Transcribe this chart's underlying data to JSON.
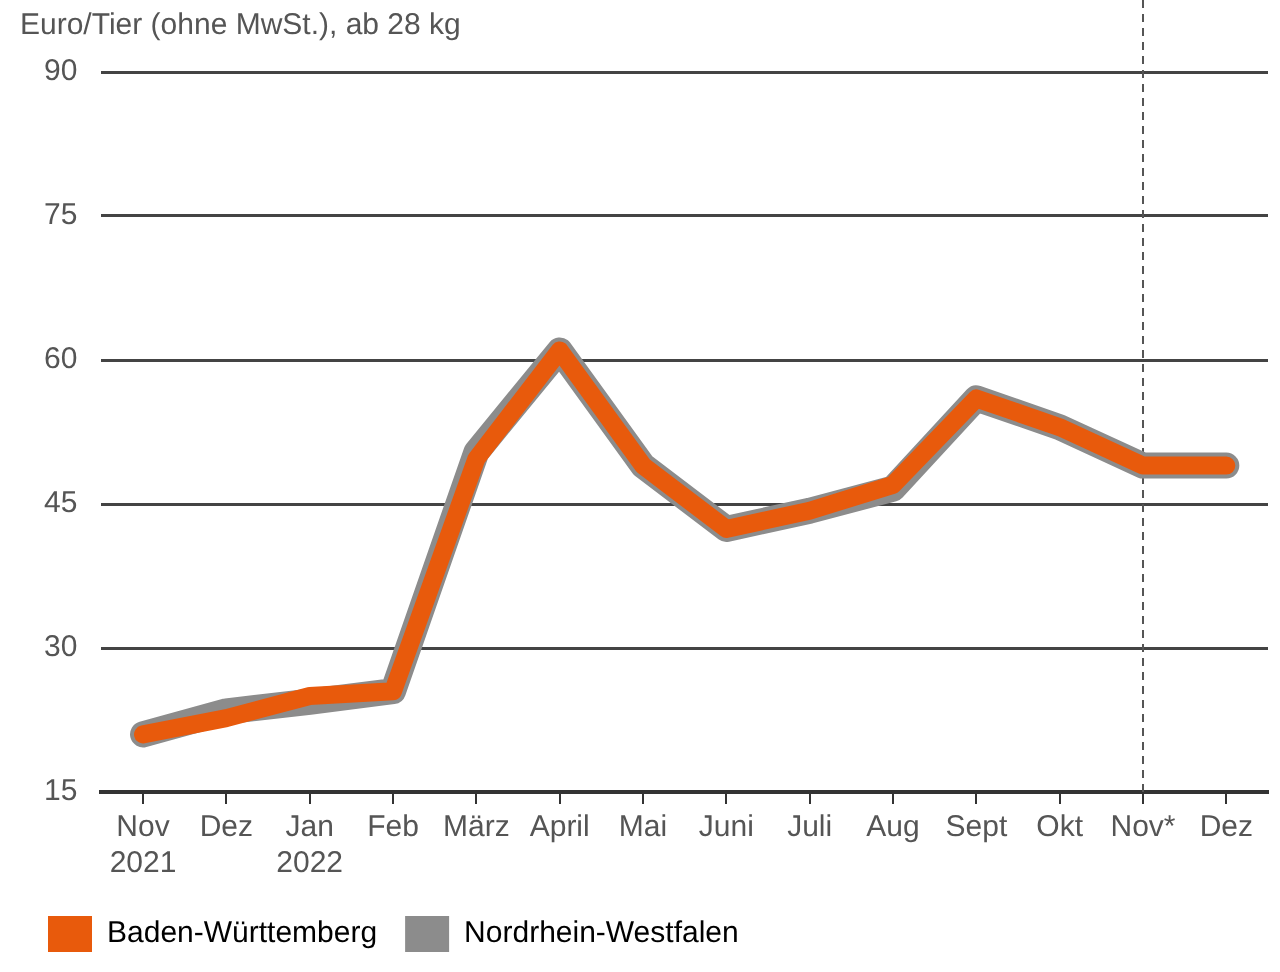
{
  "chart_data": {
    "type": "line",
    "title": "Euro/Tier (ohne MwSt.), ab 28 kg",
    "categories": [
      "Nov 2021",
      "Dez",
      "Jan 2022",
      "Feb",
      "März",
      "April",
      "Mai",
      "Juni",
      "Juli",
      "Aug",
      "Sept",
      "Okt",
      "Nov*",
      "Dez"
    ],
    "series": [
      {
        "name": "Baden-Württemberg",
        "color": "#e85a0c",
        "values": [
          21,
          22.7,
          25,
          25.5,
          49.7,
          61,
          49,
          42.4,
          44.3,
          47,
          56,
          53,
          49,
          49
        ]
      },
      {
        "name": "Nordrhein-Westfalen",
        "color": "#8c8c8c",
        "values": [
          21,
          23.4,
          24.4,
          25.5,
          50.4,
          61,
          49,
          42.4,
          44.3,
          46.6,
          56,
          53,
          49,
          49
        ]
      }
    ],
    "ylim": [
      15,
      90
    ],
    "yticks": [
      15,
      30,
      45,
      60,
      75,
      90
    ],
    "grid": "y",
    "legend": "bottom left",
    "marker": "none",
    "line_style": "solid",
    "ref_lines": [
      {
        "axis": "x",
        "value": "Nov*",
        "line_style": "dashed",
        "color": "#555555"
      }
    ]
  }
}
